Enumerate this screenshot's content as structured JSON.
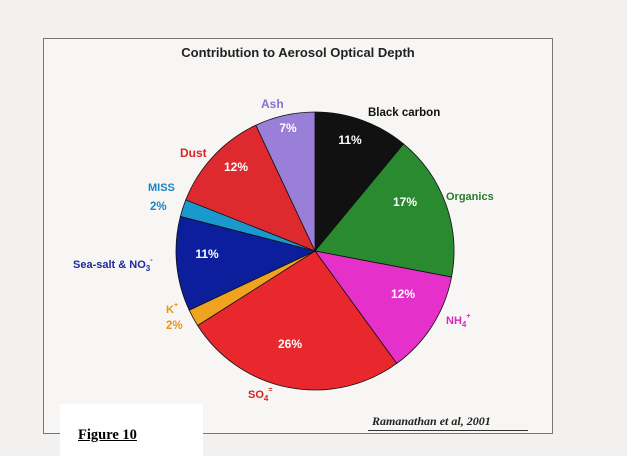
{
  "chart_data": {
    "type": "pie",
    "title": "Contribution to Aerosol Optical Depth",
    "slices": [
      {
        "name": "Black carbon",
        "label_text": "Black carbon",
        "label_sup": "",
        "value": 11,
        "value_label": "11%",
        "color": "#111111",
        "label_color": "#111111"
      },
      {
        "name": "Organics",
        "label_text": "Organics",
        "label_sup": "",
        "value": 17,
        "value_label": "17%",
        "color": "#2a8a2f",
        "label_color": "#2a7a2a"
      },
      {
        "name": "NH4+",
        "label_text": "NH",
        "label_sub": "4",
        "label_sup": "+",
        "value": 12,
        "value_label": "12%",
        "color": "#e531c9",
        "label_color": "#d42bbb"
      },
      {
        "name": "SO4=",
        "label_text": "SO",
        "label_sub": "4",
        "label_sup": "=",
        "value": 26,
        "value_label": "26%",
        "color": "#e8282d",
        "label_color": "#d42020"
      },
      {
        "name": "K+",
        "label_text": "K",
        "label_sup": "+",
        "value": 2,
        "value_label": "2%",
        "color": "#f0a31f",
        "label_color": "#e8961a"
      },
      {
        "name": "Sea-salt & NO3-",
        "label_text": "Sea-salt & NO",
        "label_sub": "3",
        "label_sup": "-",
        "value": 11,
        "value_label": "11%",
        "color": "#0c1e9b",
        "label_color": "#1a2a9a"
      },
      {
        "name": "MISS",
        "label_text": "MISS",
        "label_sup": "",
        "value": 2,
        "value_label": "2%",
        "color": "#1a99cf",
        "label_color": "#1a86c2"
      },
      {
        "name": "Dust",
        "label_text": "Dust",
        "label_sup": "",
        "value": 12,
        "value_label": "12%",
        "color": "#de2a2e",
        "label_color": "#d42828"
      },
      {
        "name": "Ash",
        "label_text": "Ash",
        "label_sup": "",
        "value": 7,
        "value_label": "7%",
        "color": "#9a7fd8",
        "label_color": "#8a6ed0"
      }
    ],
    "legend": "none"
  },
  "credit": "Ramanathan et al, 2001",
  "figure_label": "Figure 10"
}
